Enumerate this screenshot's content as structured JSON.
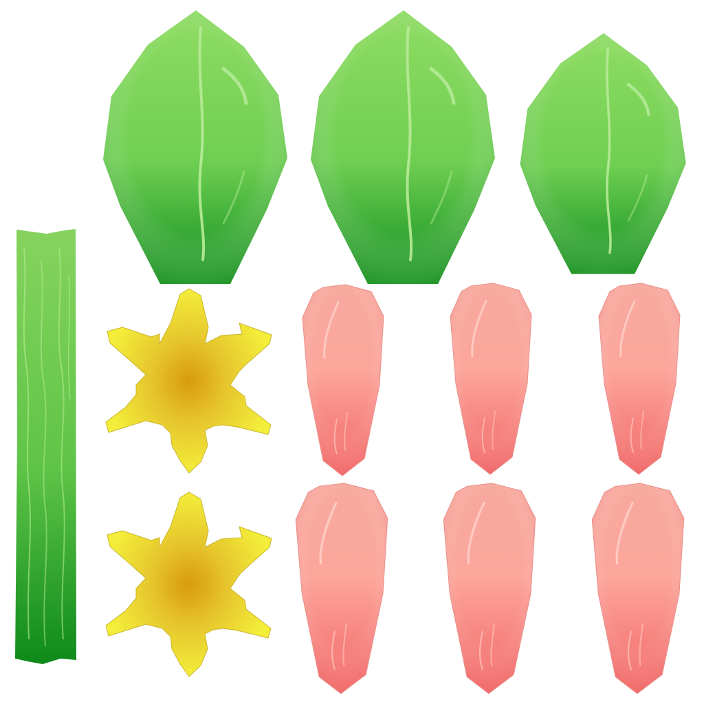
{
  "sheet": {
    "background": "#ffffff",
    "parts": {
      "stem": {
        "count": 1,
        "colors": {
          "top": "#86d35e",
          "mid": "#5ec447",
          "bottom": "#0e8a1a",
          "vein": "#b6ec94"
        }
      },
      "leaves": {
        "count": 3,
        "colors": {
          "top": "#8fdc63",
          "mid": "#5fc646",
          "bottom": "#0f8e1e",
          "highlight": "#c8f0aa"
        }
      },
      "flowers": {
        "count": 2,
        "colors": {
          "center": "#d89a10",
          "mid": "#e6c52c",
          "edge": "#f3ee3a",
          "outline": "#c9b52e"
        }
      },
      "petals": {
        "count": 6,
        "colors": {
          "top": "#f7a99e",
          "mid": "#fca69c",
          "bottom": "#f26464",
          "highlight": "#ffd8d2",
          "outline": "#e98d86"
        }
      }
    }
  }
}
